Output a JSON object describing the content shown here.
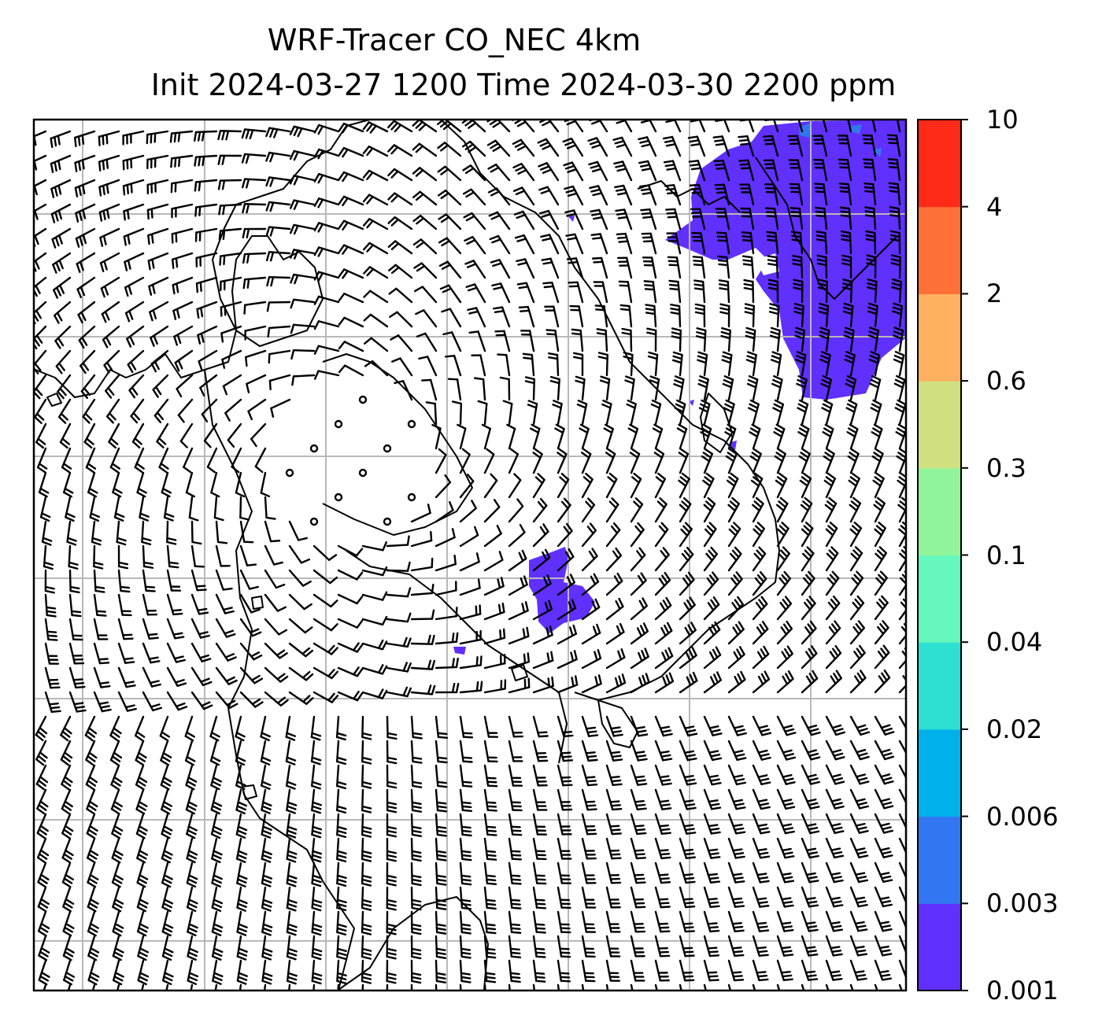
{
  "title": {
    "line1": "WRF-Tracer CO_NEC 4km",
    "line2": "Init 2024-03-27 1200 Time 2024-03-30 2200 ppm"
  },
  "map": {
    "field": "CO_NEC tracer concentration (ppm) with wind barbs",
    "plume_color": "#6030ff",
    "coastline_color": "#000000",
    "gridline_color": "#b8b8b8",
    "barb_color": "#000000"
  },
  "colorbar": {
    "levels": [
      "0.001",
      "0.003",
      "0.006",
      "0.02",
      "0.04",
      "0.1",
      "0.3",
      "0.6",
      "2",
      "4",
      "10"
    ],
    "colors": [
      "#6030ff",
      "#3276f2",
      "#00b0ea",
      "#2ee0d2",
      "#66f7ba",
      "#92f49a",
      "#d0df80",
      "#ffb060",
      "#ff7038",
      "#ff2a18"
    ]
  }
}
